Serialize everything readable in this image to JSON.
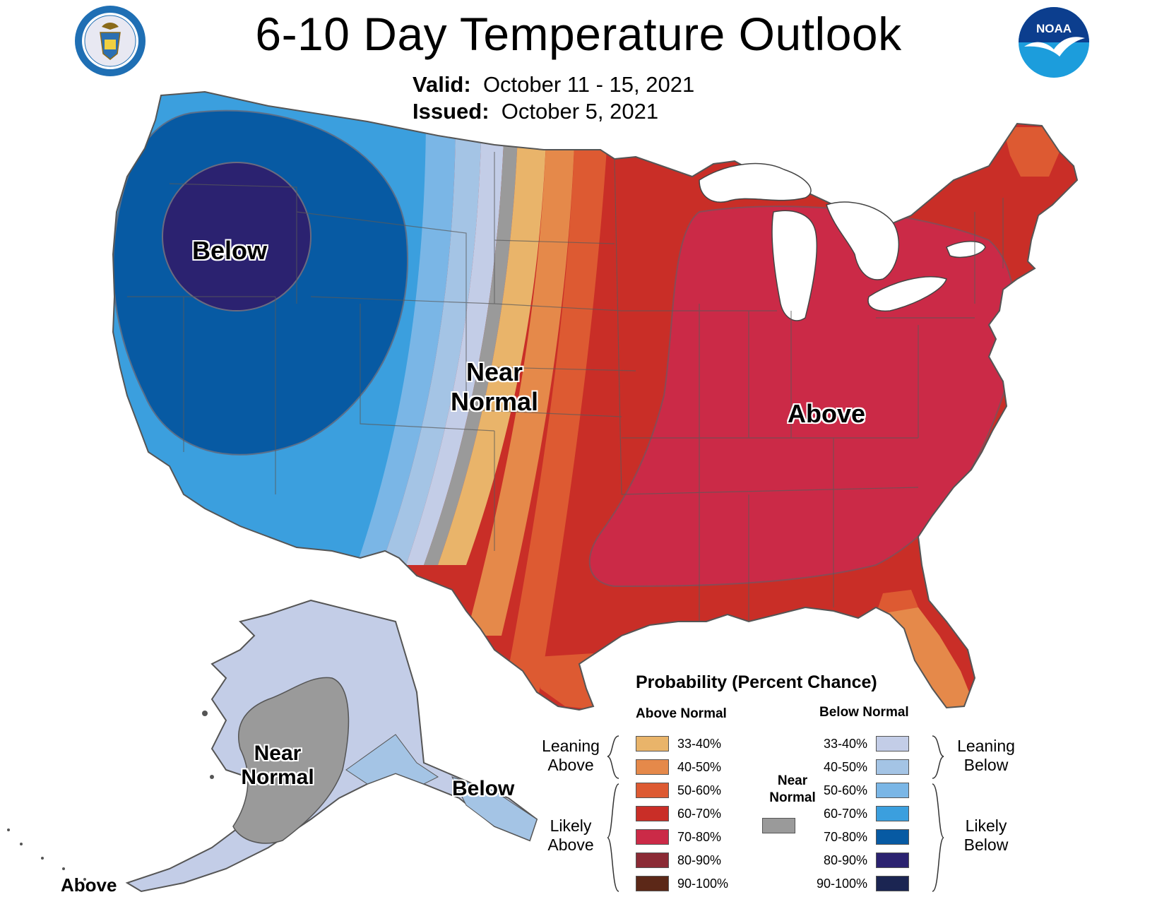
{
  "header": {
    "title": "6-10 Day Temperature Outlook",
    "valid_label": "Valid:",
    "valid_value": "October 11 - 15, 2021",
    "issued_label": "Issued:",
    "issued_value": "October 5, 2021"
  },
  "logos": {
    "seal_text": "DEPARTMENT OF COMMERCE · UNITED STATES OF AMERICA",
    "noaa_text": "NOAA"
  },
  "map_labels": {
    "below": "Below",
    "near_normal_line1": "Near",
    "near_normal_line2": "Normal",
    "above": "Above"
  },
  "alaska_labels": {
    "near_normal_line1": "Near",
    "near_normal_line2": "Normal",
    "below": "Below",
    "above": "Above"
  },
  "legend": {
    "title": "Probability (Percent Chance)",
    "above_header": "Above Normal",
    "below_header": "Below Normal",
    "near_normal_line1": "Near",
    "near_normal_line2": "Normal",
    "leaning_above_line1": "Leaning",
    "leaning_above_line2": "Above",
    "likely_above_line1": "Likely",
    "likely_above_line2": "Above",
    "leaning_below_line1": "Leaning",
    "leaning_below_line2": "Below",
    "likely_below_line1": "Likely",
    "likely_below_line2": "Below",
    "above_items": [
      {
        "label": "33-40%",
        "color": "#e9b46a"
      },
      {
        "label": "40-50%",
        "color": "#e5894a"
      },
      {
        "label": "50-60%",
        "color": "#dd5a32"
      },
      {
        "label": "60-70%",
        "color": "#c92e27"
      },
      {
        "label": "70-80%",
        "color": "#cb2a47"
      },
      {
        "label": "80-90%",
        "color": "#8b2a35"
      },
      {
        "label": "90-100%",
        "color": "#5c2818"
      }
    ],
    "below_items": [
      {
        "label": "33-40%",
        "color": "#c3cde7"
      },
      {
        "label": "40-50%",
        "color": "#a4c4e5"
      },
      {
        "label": "50-60%",
        "color": "#7ab6e6"
      },
      {
        "label": "60-70%",
        "color": "#3b9fde"
      },
      {
        "label": "70-80%",
        "color": "#075aa3"
      },
      {
        "label": "80-90%",
        "color": "#2b2270"
      },
      {
        "label": "90-100%",
        "color": "#1b2552"
      }
    ],
    "near_normal_color": "#9a9a9a"
  }
}
